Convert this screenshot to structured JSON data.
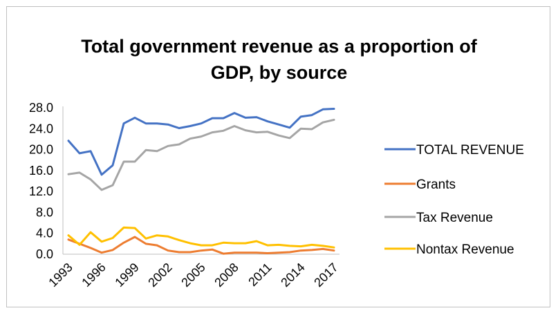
{
  "chart_data": {
    "type": "line",
    "title_lines": [
      "Total government revenue as a proportion of",
      "GDP, by source"
    ],
    "xlabel": "",
    "ylabel": "",
    "x": [
      1993,
      1994,
      1995,
      1996,
      1997,
      1998,
      1999,
      2000,
      2001,
      2002,
      2003,
      2004,
      2005,
      2006,
      2007,
      2008,
      2009,
      2010,
      2011,
      2012,
      2013,
      2014,
      2015,
      2016,
      2017
    ],
    "x_tick_labels": [
      "1993",
      "1996",
      "1999",
      "2002",
      "2005",
      "2008",
      "2011",
      "2014",
      "2017"
    ],
    "x_tick_values": [
      1993,
      1996,
      1999,
      2002,
      2005,
      2008,
      2011,
      2014,
      2017
    ],
    "ylim": [
      0,
      28
    ],
    "y_ticks": [
      0,
      4,
      8,
      12,
      16,
      20,
      24,
      28
    ],
    "y_tick_labels": [
      "0.0",
      "4.0",
      "8.0",
      "12.0",
      "16.0",
      "20.0",
      "24.0",
      "28.0"
    ],
    "grid": false,
    "legend_position": "right",
    "series": [
      {
        "name": "TOTAL REVENUE",
        "color": "#4472c4",
        "values": [
          21.7,
          19.3,
          19.7,
          15.2,
          17.0,
          25.0,
          26.1,
          25.0,
          25.0,
          24.8,
          24.1,
          24.5,
          25.0,
          26.0,
          26.0,
          27.0,
          26.1,
          26.2,
          25.4,
          24.8,
          24.2,
          26.3,
          26.6,
          27.7,
          27.8
        ]
      },
      {
        "name": "Grants",
        "color": "#ed7d31",
        "values": [
          2.8,
          2.0,
          1.2,
          0.3,
          0.8,
          2.2,
          3.3,
          2.0,
          1.7,
          0.7,
          0.4,
          0.4,
          0.7,
          0.9,
          0.1,
          0.3,
          0.3,
          0.3,
          0.2,
          0.3,
          0.4,
          0.7,
          0.8,
          1.0,
          0.7
        ]
      },
      {
        "name": "Tax Revenue",
        "color": "#a5a5a5",
        "values": [
          15.3,
          15.6,
          14.3,
          12.3,
          13.2,
          17.7,
          17.7,
          19.9,
          19.7,
          20.7,
          21.0,
          22.1,
          22.5,
          23.3,
          23.6,
          24.5,
          23.7,
          23.3,
          23.4,
          22.7,
          22.2,
          24.0,
          23.9,
          25.2,
          25.7
        ]
      },
      {
        "name": "Nontax Revenue",
        "color": "#ffc000",
        "values": [
          3.6,
          1.8,
          4.2,
          2.4,
          3.1,
          5.1,
          5.0,
          3.0,
          3.6,
          3.4,
          2.7,
          2.1,
          1.7,
          1.7,
          2.2,
          2.1,
          2.1,
          2.5,
          1.7,
          1.8,
          1.6,
          1.5,
          1.8,
          1.6,
          1.3
        ]
      }
    ]
  }
}
